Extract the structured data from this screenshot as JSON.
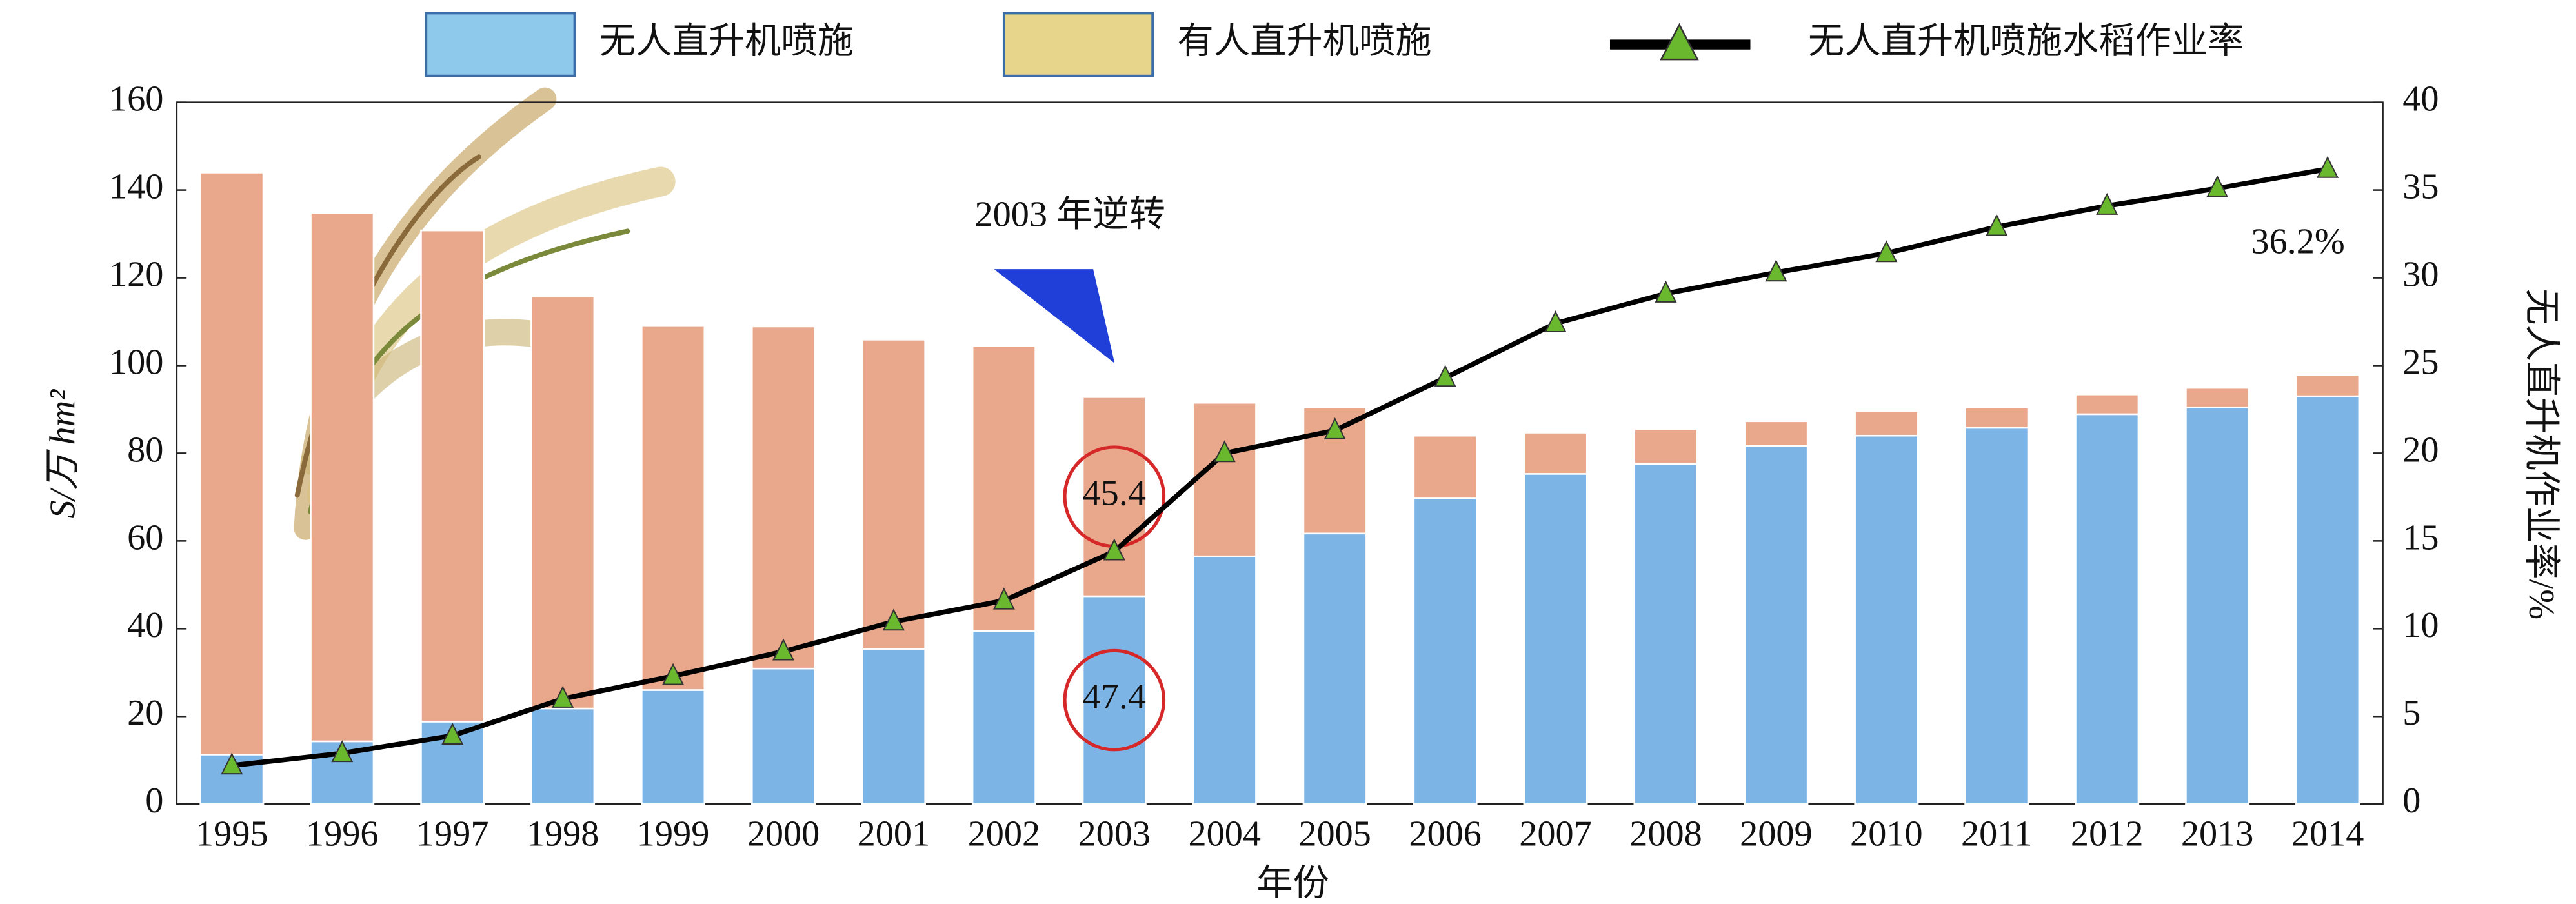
{
  "chart_data": {
    "type": "bar-line",
    "annotation": "2003 年逆转",
    "x_label": "年份",
    "y_label": "S/万 hm²",
    "y2_label": "无人直升机作业率/%",
    "categories": [
      "1995",
      "1996",
      "1997",
      "1998",
      "1999",
      "2000",
      "2001",
      "2002",
      "2003",
      "2004",
      "2005",
      "2006",
      "2007",
      "2008",
      "2009",
      "2010",
      "2011",
      "2012",
      "2013",
      "2014"
    ],
    "series": [
      {
        "name": "无人直升机喷施",
        "type": "bar",
        "color": "#7db4e6",
        "legend_color": "#8ec8ea",
        "values": [
          11.3,
          14.3,
          18.8,
          21.8,
          26,
          30.9,
          35.4,
          39.5,
          47.4,
          56.5,
          61.7,
          69.7,
          75.3,
          77.6,
          81.7,
          84,
          85.8,
          88.9,
          90.4,
          93
        ],
        "value_labels": [
          null,
          null,
          null,
          null,
          null,
          null,
          null,
          null,
          "47.4",
          null,
          null,
          null,
          null,
          null,
          null,
          null,
          null,
          null,
          null,
          null
        ]
      },
      {
        "name": "有人直升机喷施",
        "type": "bar",
        "color": "#e9a88c",
        "legend_color": "#e8d58c",
        "values": [
          132.7,
          120.5,
          112,
          94,
          83,
          78,
          70.5,
          65,
          45.4,
          35,
          28.7,
          14.3,
          9.4,
          7.9,
          5.6,
          5.6,
          4.6,
          4.5,
          4.5,
          4.9
        ],
        "value_labels": [
          null,
          null,
          null,
          null,
          null,
          null,
          null,
          null,
          "45.4",
          null,
          null,
          null,
          null,
          null,
          null,
          null,
          null,
          null,
          null,
          null
        ]
      },
      {
        "name": "无人直升机喷施水稻作业率",
        "type": "line",
        "axis": "y2",
        "color": "#000000",
        "marker_color": "#6ab82e",
        "values": [
          2.2,
          2.9,
          3.9,
          6,
          7.3,
          8.7,
          10.4,
          11.6,
          14.4,
          20,
          21.3,
          24.3,
          27.4,
          29.1,
          30.3,
          31.4,
          32.9,
          34.1,
          35.1,
          36.2
        ],
        "value_labels": [
          null,
          null,
          null,
          null,
          null,
          null,
          null,
          null,
          null,
          null,
          null,
          null,
          null,
          null,
          null,
          null,
          null,
          null,
          null,
          "36.2%"
        ]
      }
    ],
    "ylim": [
      0,
      160
    ],
    "yticks": [
      0,
      20,
      40,
      60,
      80,
      100,
      120,
      140,
      160
    ],
    "y2lim": [
      0,
      40
    ],
    "y2ticks": [
      0,
      5,
      10,
      15,
      20,
      25,
      30,
      35,
      40
    ]
  }
}
